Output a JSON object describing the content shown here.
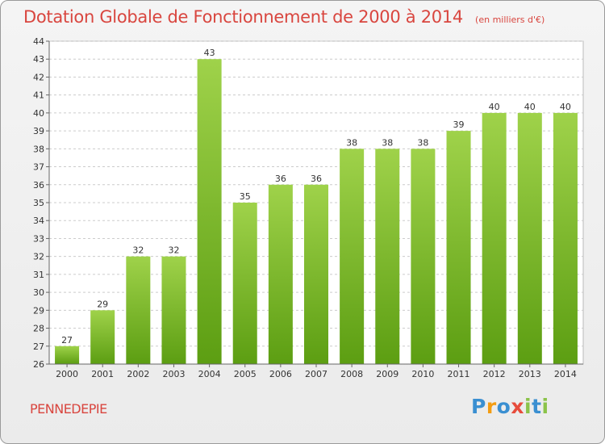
{
  "title": "Dotation Globale de Fonctionnement de 2000 à 2014",
  "subtitle": "(en milliers d'€)",
  "commune": "PENNEDEPIE",
  "logo": {
    "letters": [
      {
        "char": "P",
        "color": "#3a8fd1"
      },
      {
        "char": "r",
        "color": "#f39c12"
      },
      {
        "char": "o",
        "color": "#3a8fd1"
      },
      {
        "char": "x",
        "color": "#e74c3c"
      },
      {
        "char": "i",
        "color": "#8bc34a"
      },
      {
        "char": "t",
        "color": "#3a8fd1"
      },
      {
        "char": "i",
        "color": "#8bc34a"
      }
    ]
  },
  "colors": {
    "bar_top": "#9fd24a",
    "bar_bottom": "#5c9e12",
    "title": "#d9463f",
    "grid": "#cccccc"
  },
  "chart_data": {
    "type": "bar",
    "categories": [
      "2000",
      "2001",
      "2002",
      "2003",
      "2004",
      "2005",
      "2006",
      "2007",
      "2008",
      "2009",
      "2010",
      "2011",
      "2012",
      "2013",
      "2014"
    ],
    "values": [
      27,
      29,
      32,
      32,
      43,
      35,
      36,
      36,
      38,
      38,
      38,
      39,
      40,
      40,
      40
    ],
    "title": "Dotation Globale de Fonctionnement de 2000 à 2014",
    "subtitle": "(en milliers d'€)",
    "ylim": [
      26,
      44
    ],
    "yticks": [
      26,
      27,
      28,
      29,
      30,
      31,
      32,
      33,
      34,
      35,
      36,
      37,
      38,
      39,
      40,
      41,
      42,
      43,
      44
    ],
    "grid": true
  }
}
